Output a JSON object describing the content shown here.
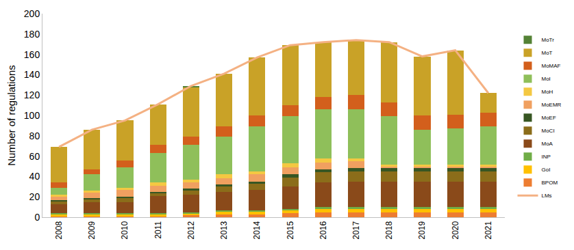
{
  "chart_data": {
    "type": "bar",
    "stacked": true,
    "y_label": "Number of regulations",
    "categories": [
      "2008",
      "2009",
      "2010",
      "2011",
      "2012",
      "2013",
      "2014",
      "2015",
      "2016",
      "2017",
      "2018",
      "2019",
      "2020",
      "2021"
    ],
    "ylim": [
      0,
      200
    ],
    "yticks": [
      0,
      20,
      40,
      60,
      80,
      100,
      120,
      140,
      160,
      180,
      200
    ],
    "grid": false,
    "legend": "right",
    "series": [
      {
        "name": "LMs",
        "type": "line",
        "color": "#f4b183",
        "values": [
          69,
          86,
          95,
          111,
          129,
          141,
          157,
          169,
          172,
          174,
          172,
          158,
          164,
          122
        ]
      },
      {
        "name": "BPOM",
        "type": "bar",
        "color": "#ed7d31",
        "values": [
          1,
          1,
          1,
          1,
          2,
          3,
          3,
          4,
          5,
          5,
          5,
          5,
          5,
          5
        ]
      },
      {
        "name": "GoI",
        "type": "bar",
        "color": "#ffc000",
        "values": [
          2,
          2,
          2,
          2,
          2,
          3,
          3,
          3,
          3,
          3,
          3,
          3,
          3,
          3
        ]
      },
      {
        "name": "INP",
        "type": "bar",
        "color": "#70ad47",
        "values": [
          1,
          1,
          1,
          1,
          1,
          1,
          1,
          1,
          2,
          2,
          2,
          2,
          2,
          2
        ]
      },
      {
        "name": "MoA",
        "type": "bar",
        "color": "#8a4a1a",
        "values": [
          9,
          11,
          11,
          17,
          17,
          18,
          20,
          22,
          24,
          25,
          25,
          25,
          25,
          25
        ]
      },
      {
        "name": "MoCI",
        "type": "bar",
        "color": "#8b6d1a",
        "values": [
          3,
          3,
          4,
          3,
          4,
          5,
          6,
          9,
          10,
          10,
          10,
          10,
          10,
          10
        ]
      },
      {
        "name": "MoEF",
        "type": "bar",
        "color": "#375623",
        "values": [
          1,
          1,
          1,
          1,
          2,
          2,
          2,
          3,
          3,
          3,
          3,
          3,
          3,
          3
        ]
      },
      {
        "name": "MoEMR",
        "type": "bar",
        "color": "#f0a060",
        "values": [
          3,
          5,
          7,
          6,
          6,
          6,
          7,
          7,
          7,
          7,
          2,
          2,
          2,
          2
        ]
      },
      {
        "name": "MoH",
        "type": "bar",
        "color": "#f4c842",
        "values": [
          2,
          2,
          2,
          3,
          3,
          4,
          3,
          4,
          4,
          3,
          2,
          2,
          2,
          2
        ]
      },
      {
        "name": "MoI",
        "type": "bar",
        "color": "#8fbf5a",
        "values": [
          7,
          16,
          20,
          29,
          34,
          37,
          44,
          46,
          48,
          48,
          47,
          34,
          35,
          37
        ]
      },
      {
        "name": "MoMAF",
        "type": "bar",
        "color": "#d35f1c",
        "values": [
          5,
          5,
          7,
          8,
          8,
          10,
          11,
          11,
          12,
          14,
          14,
          14,
          14,
          14
        ]
      },
      {
        "name": "MoT",
        "type": "bar",
        "color": "#c9a227",
        "values": [
          35,
          39,
          39,
          40,
          49,
          52,
          57,
          59,
          54,
          54,
          59,
          58,
          63,
          19
        ]
      },
      {
        "name": "MoTr",
        "type": "bar",
        "color": "#548235",
        "values": [
          0,
          0,
          0,
          0,
          1,
          0,
          0,
          0,
          0,
          0,
          0,
          0,
          0,
          0
        ]
      }
    ]
  }
}
